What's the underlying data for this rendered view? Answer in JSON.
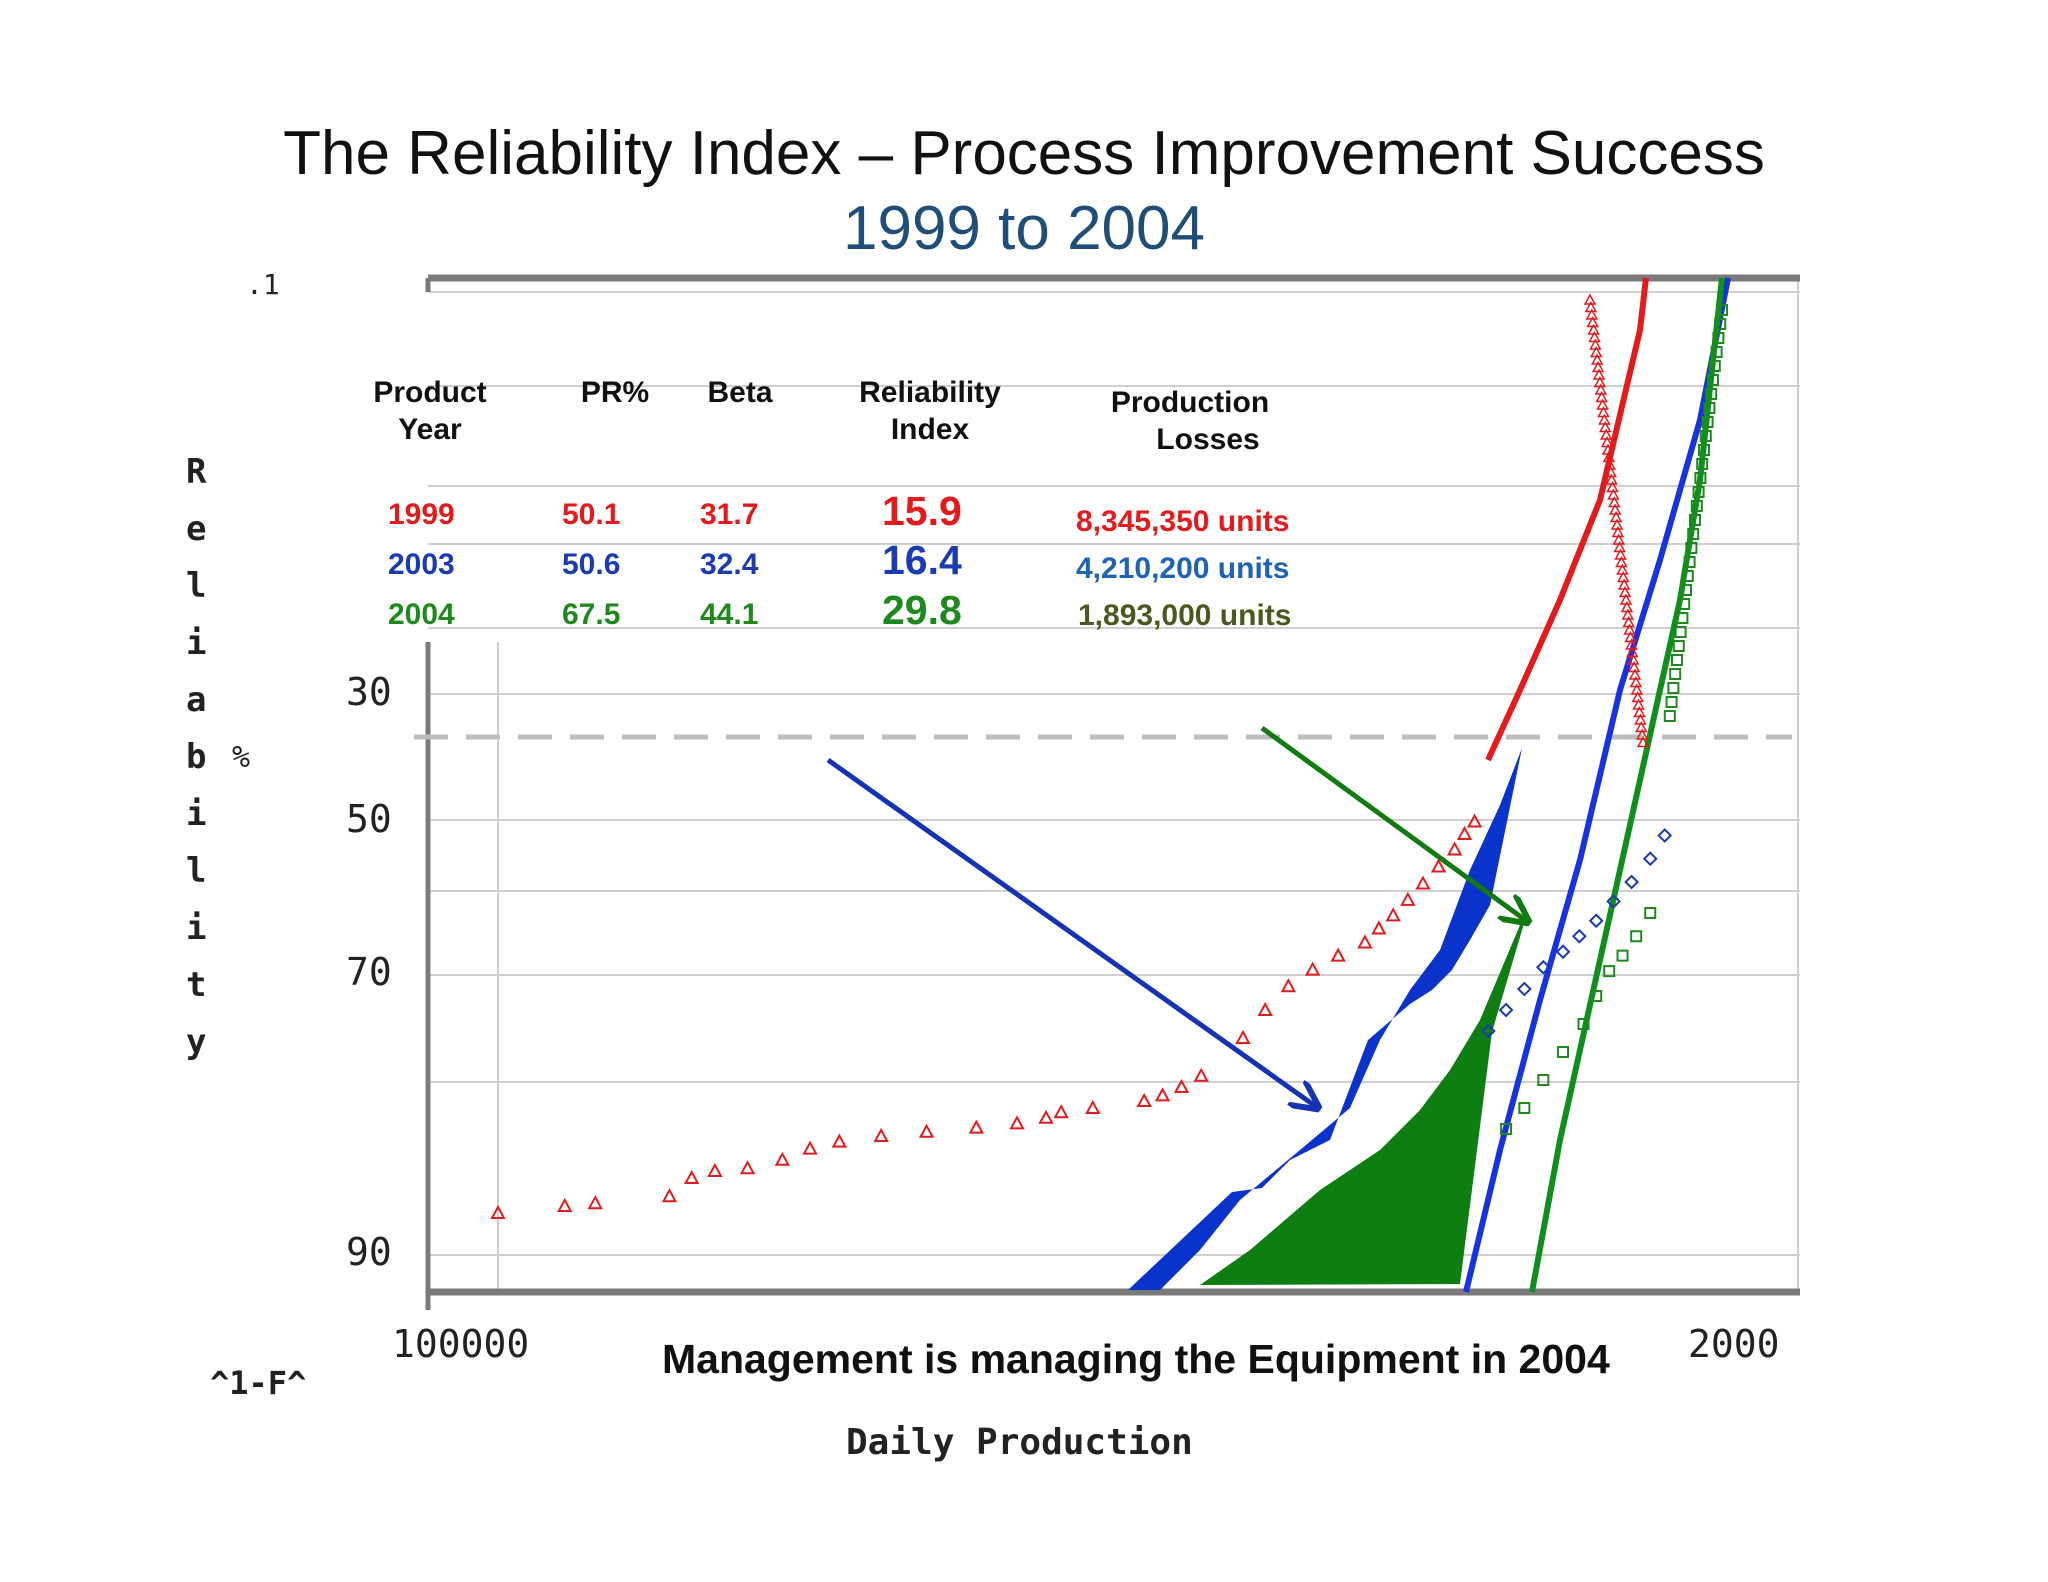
{
  "slide": {
    "title": "The Reliability Index – Process Improvement Success",
    "subtitle": "1999 to 2004",
    "caption": "Management is managing the Equipment in 2004"
  },
  "table": {
    "headers": {
      "product": "Product",
      "year": "Year",
      "pr": "PR%",
      "beta": "Beta",
      "reliability": "Reliability",
      "index": "Index",
      "production": "Production",
      "losses": "Losses"
    },
    "rows": [
      {
        "year": "1999",
        "pr": "50.1",
        "beta": "31.7",
        "index": "15.9",
        "losses": "8,345,350 units",
        "color": "#e41a1c"
      },
      {
        "year": "2003",
        "pr": "50.6",
        "beta": "32.4",
        "index": "16.4",
        "losses": "4,210,200 units",
        "color": "#1a3bb3"
      },
      {
        "year": "2004",
        "pr": "67.5",
        "beta": "44.1",
        "index": "29.8",
        "losses": "1,893,000 units",
        "color": "#1e8a1e"
      }
    ]
  },
  "chart_data": {
    "type": "scatter",
    "xlabel": "Daily Production",
    "ylabel": "Reliability %",
    "corner_label": "^1-F^",
    "y_tick_labels": [
      ".1",
      "30",
      "50",
      "70",
      "90"
    ],
    "x_tick_labels": [
      "100000",
      "2000"
    ],
    "x_scale": "log",
    "series": [
      {
        "name": "1999",
        "marker": "triangle",
        "color": "#e41a1c",
        "points": [
          [
            100000,
            87
          ],
          [
            88000,
            86.5
          ],
          [
            83000,
            86.3
          ],
          [
            72000,
            85.8
          ],
          [
            69000,
            84.5
          ],
          [
            66000,
            84
          ],
          [
            62000,
            83.8
          ],
          [
            58000,
            83.2
          ],
          [
            55000,
            82.4
          ],
          [
            52000,
            81.9
          ],
          [
            48000,
            81.5
          ],
          [
            44000,
            81.2
          ],
          [
            40000,
            80.9
          ],
          [
            37000,
            80.6
          ],
          [
            35000,
            80.2
          ],
          [
            34000,
            79.8
          ],
          [
            32000,
            79.5
          ],
          [
            29000,
            79
          ],
          [
            28000,
            78.6
          ],
          [
            27000,
            78
          ],
          [
            26000,
            77.2
          ],
          [
            24000,
            74.5
          ],
          [
            23000,
            72.5
          ],
          [
            22000,
            70.8
          ],
          [
            21000,
            69.3
          ],
          [
            20000,
            67.5
          ],
          [
            19000,
            65.8
          ],
          [
            18500,
            64
          ],
          [
            18000,
            62.3
          ],
          [
            17500,
            60.3
          ],
          [
            17000,
            58.2
          ],
          [
            16500,
            56
          ],
          [
            16000,
            53.8
          ],
          [
            15700,
            51.8
          ],
          [
            15400,
            50.2
          ]
        ]
      },
      {
        "name": "2003",
        "marker": "diamond",
        "color": "#1a3bb3",
        "points": [
          [
            15000,
            74
          ],
          [
            14500,
            72.5
          ],
          [
            14000,
            71
          ],
          [
            13500,
            69
          ],
          [
            13000,
            67
          ],
          [
            12600,
            65
          ],
          [
            12200,
            63
          ],
          [
            11800,
            60.5
          ],
          [
            11400,
            58
          ],
          [
            11000,
            55
          ],
          [
            10700,
            52
          ]
        ]
      },
      {
        "name": "2004",
        "marker": "square",
        "color": "#1e8a1e",
        "points": [
          [
            14500,
            81
          ],
          [
            14000,
            79.5
          ],
          [
            13500,
            77.5
          ],
          [
            13000,
            75.5
          ],
          [
            12500,
            73.5
          ],
          [
            12200,
            71.5
          ],
          [
            11900,
            69.5
          ],
          [
            11600,
            67.5
          ],
          [
            11300,
            65
          ],
          [
            11000,
            62
          ]
        ]
      }
    ],
    "reference_line": {
      "style": "dashed",
      "color": "#bdbdbd"
    },
    "arrows": [
      {
        "color": "#1733b5"
      },
      {
        "color": "#117a11"
      }
    ],
    "grid": true
  }
}
